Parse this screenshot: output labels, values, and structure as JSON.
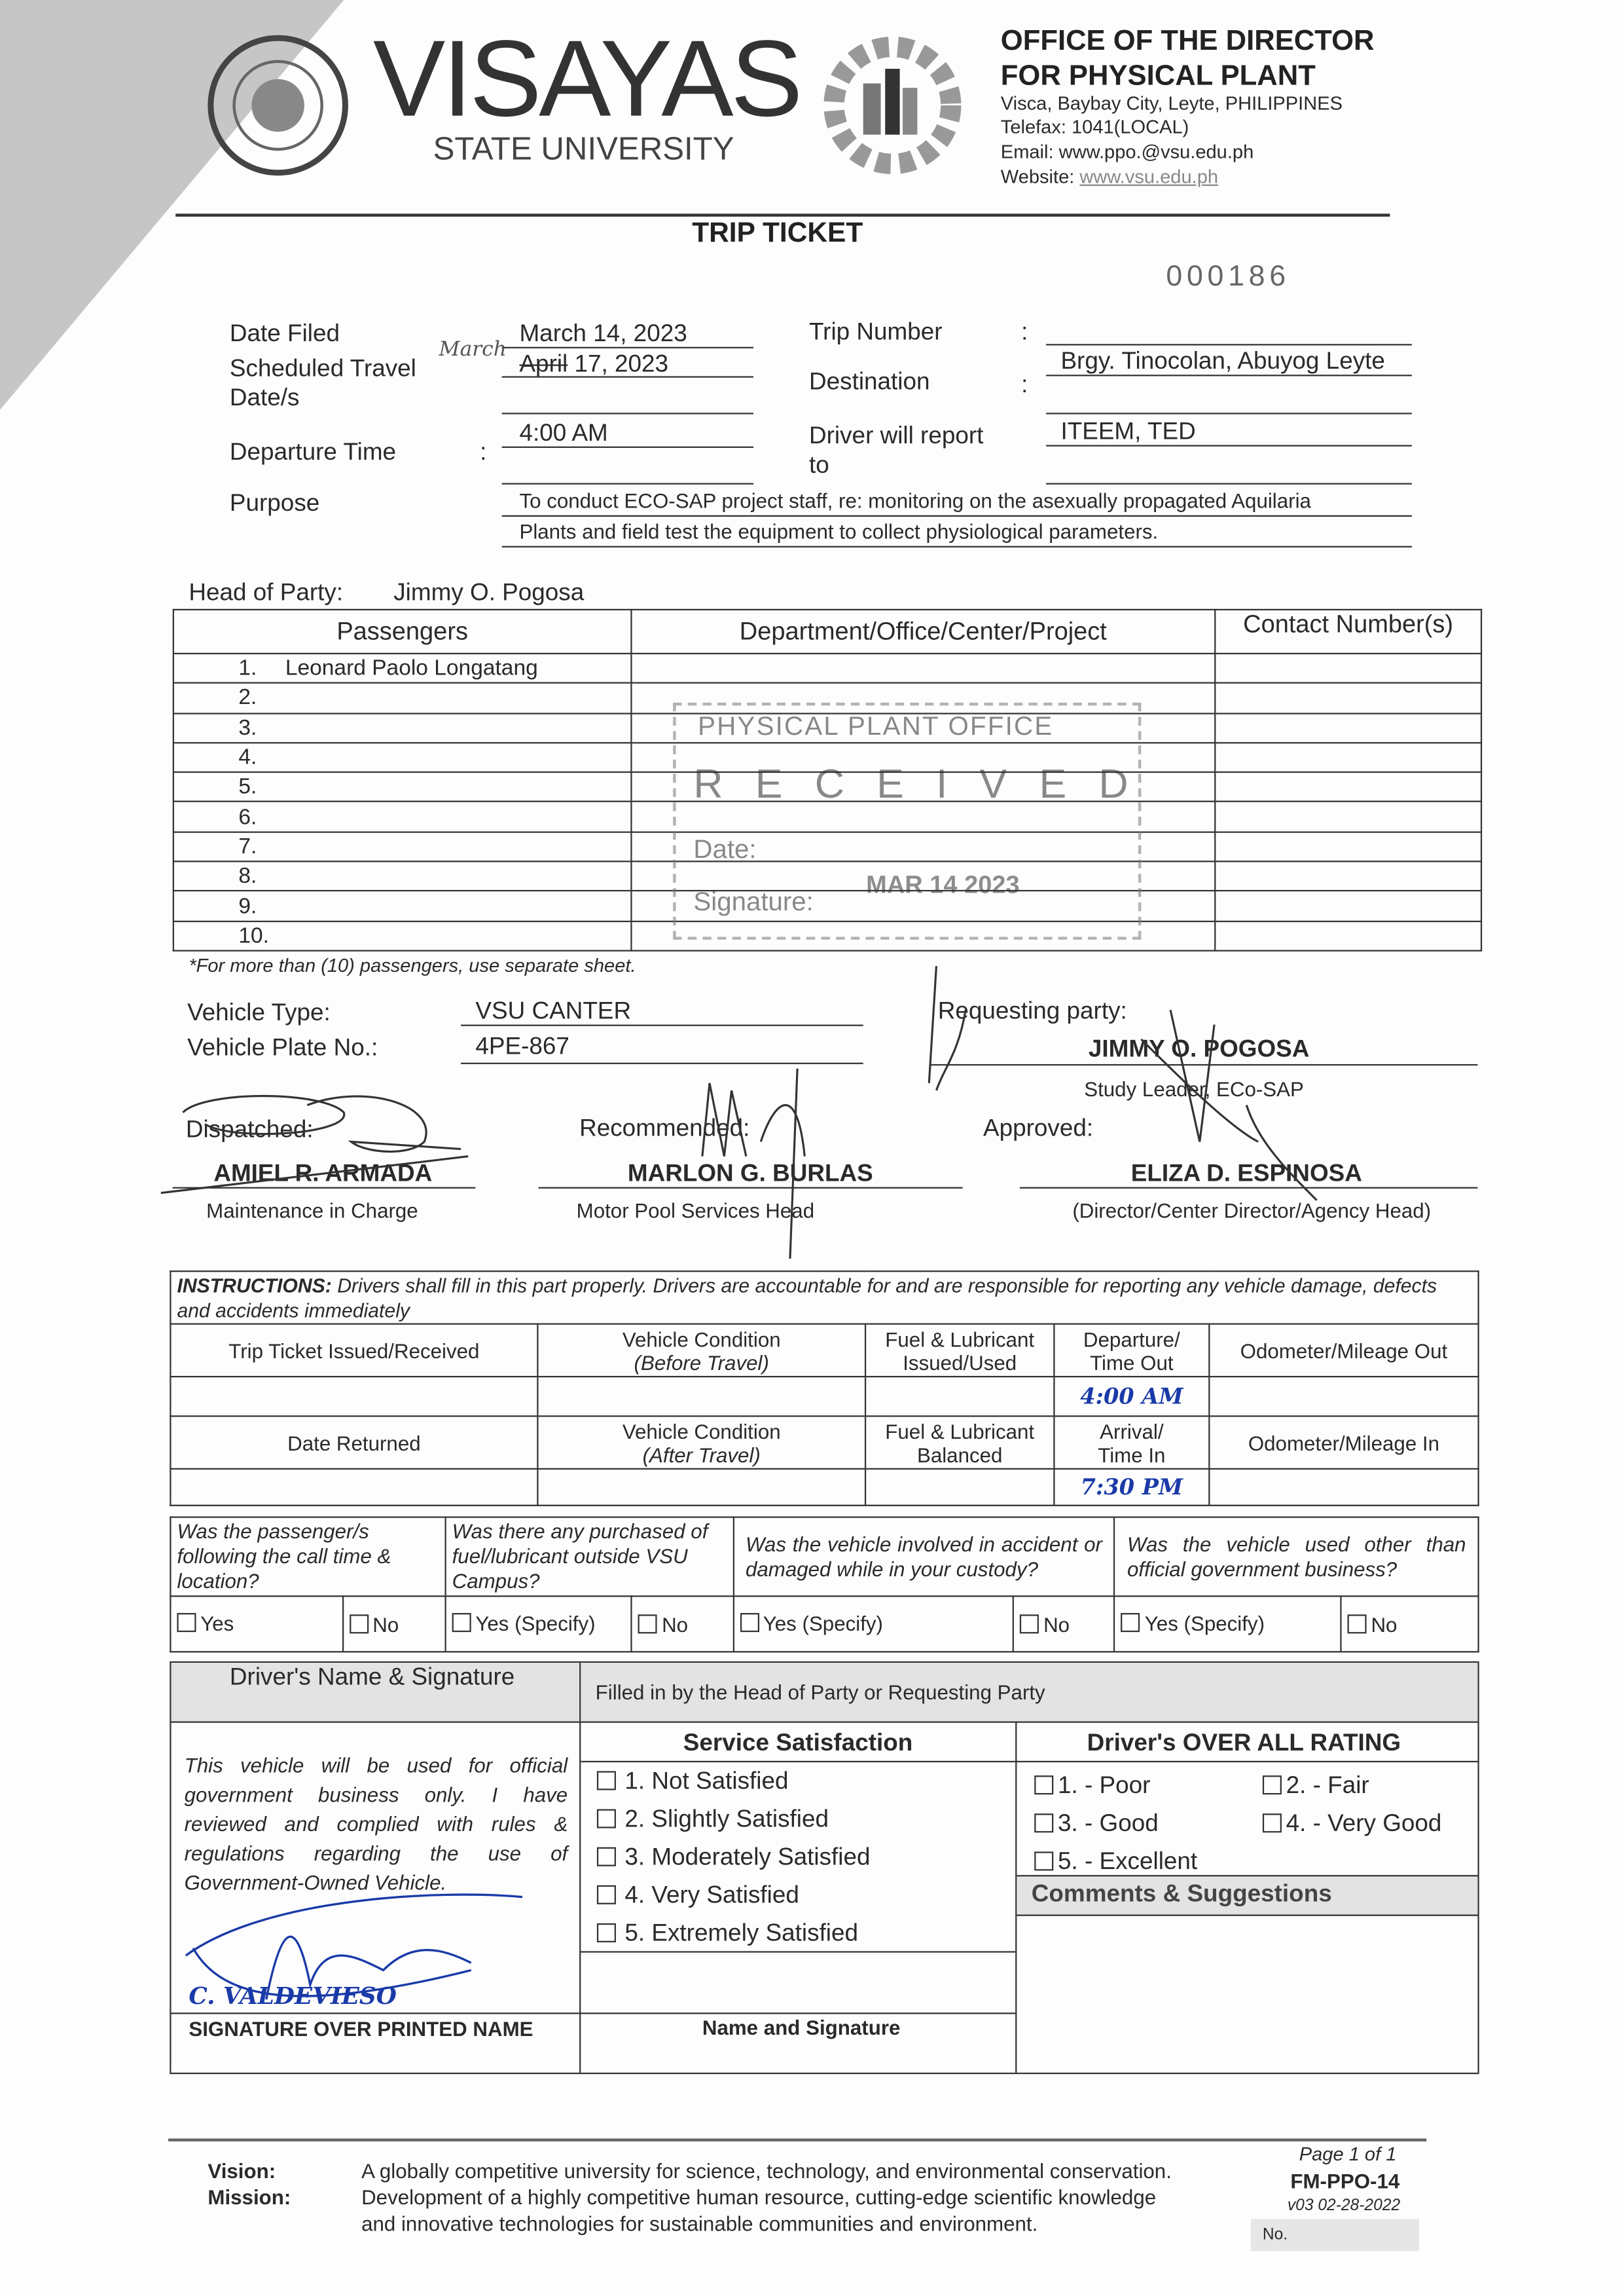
{
  "header": {
    "university_name": "VISAYAS",
    "university_sub": "STATE UNIVERSITY",
    "seal_text": "VISAYAS STATE UNIVERSITY",
    "office_logo_text": "PHYSICAL PLANT OFFICE",
    "office_line1": "OFFICE OF THE DIRECTOR",
    "office_line2": "FOR PHYSICAL PLANT",
    "address": "Visca, Baybay City, Leyte, PHILIPPINES",
    "telefax": "Telefax: 1041(LOCAL)",
    "email": "Email: www.ppo.@vsu.edu.ph",
    "website_label": "Website:",
    "website": "www.vsu.edu.ph"
  },
  "title": "TRIP TICKET",
  "serial_number": "000186",
  "fields": {
    "date_filed_label": "Date Filed",
    "date_filed": "March 14, 2023",
    "scheduled_label_1": "Scheduled Travel",
    "scheduled_label_2": "Date/s",
    "scheduled_annotation": "March",
    "scheduled_struck": "April",
    "scheduled_rest": " 17, 2023",
    "departure_label": "Departure Time",
    "departure": "4:00 AM",
    "purpose_label": "Purpose",
    "purpose_line1": "To conduct ECO-SAP project staff, re: monitoring on the asexually propagated Aquilaria",
    "purpose_line2": "Plants and field test the equipment to collect physiological parameters.",
    "trip_number_label": "Trip Number",
    "trip_number": "",
    "destination_label": "Destination",
    "destination": "Brgy. Tinocolan, Abuyog Leyte",
    "report_label_1": "Driver will report",
    "report_label_2": "to",
    "report_to": "ITEEM, TED",
    "colon": ":"
  },
  "head_of_party": {
    "label": "Head of Party:",
    "value": "Jimmy O. Pogosa"
  },
  "passengers": {
    "headers": [
      "Passengers",
      "Department/Office/Center/Project",
      "Contact Number(s)"
    ],
    "rows": [
      {
        "no": "1.",
        "name": "Leonard Paolo Longatang",
        "dept": "",
        "contact": ""
      },
      {
        "no": "2.",
        "name": "",
        "dept": "",
        "contact": ""
      },
      {
        "no": "3.",
        "name": "",
        "dept": "",
        "contact": ""
      },
      {
        "no": "4.",
        "name": "",
        "dept": "",
        "contact": ""
      },
      {
        "no": "5.",
        "name": "",
        "dept": "",
        "contact": ""
      },
      {
        "no": "6.",
        "name": "",
        "dept": "",
        "contact": ""
      },
      {
        "no": "7.",
        "name": "",
        "dept": "",
        "contact": ""
      },
      {
        "no": "8.",
        "name": "",
        "dept": "",
        "contact": ""
      },
      {
        "no": "9.",
        "name": "",
        "dept": "",
        "contact": ""
      },
      {
        "no": "10.",
        "name": "",
        "dept": "",
        "contact": ""
      }
    ],
    "note": "*For more than (10) passengers, use separate sheet."
  },
  "stamp": {
    "line1": "PHYSICAL PLANT OFFICE",
    "line2": "RECEIVED",
    "date_label": "Date:",
    "date": "MAR 14 2023",
    "signature_label": "Signature:"
  },
  "vehicle": {
    "type_label": "Vehicle Type:",
    "type": "VSU CANTER",
    "plate_label": "Vehicle Plate No.:",
    "plate": "4PE-867"
  },
  "requesting": {
    "label": "Requesting party:",
    "name": "JIMMY O. POGOSA",
    "title": "Study Leader, ECo-SAP"
  },
  "signatories": [
    {
      "label": "Dispatched:",
      "name": "AMIEL R. ARMADA",
      "title": "Maintenance in Charge"
    },
    {
      "label": "Recommended:",
      "name": "MARLON G. BURLAS",
      "title": "Motor Pool Services Head"
    },
    {
      "label": "Approved:",
      "name": "ELIZA D. ESPINOSA",
      "title": "(Director/Center Director/Agency Head)"
    }
  ],
  "instructions": {
    "bold": "INSTRUCTIONS:",
    "text": " Drivers shall fill in this part properly.  Drivers are accountable for and are responsible for reporting any vehicle damage, defects and accidents immediately",
    "row1": [
      "Trip Ticket Issued/Received",
      "Vehicle Condition",
      "(Before Travel)",
      "Fuel & Lubricant",
      "Issued/Used",
      "Departure/",
      "Time Out",
      "Odometer/Mileage Out"
    ],
    "time_out": "4:00 AM",
    "row2": [
      "Date Returned",
      "Vehicle Condition",
      "(After Travel)",
      "Fuel & Lubricant",
      "Balanced",
      "Arrival/",
      "Time In",
      "Odometer/Mileage In"
    ],
    "time_in": "7:30 PM"
  },
  "questions": [
    {
      "text": "Was the passenger/s following the call time & location?",
      "yes": "Yes",
      "no": "No"
    },
    {
      "text": "Was there any purchased of fuel/lubricant outside VSU Campus?",
      "yes": "Yes (Specify)",
      "no": "No"
    },
    {
      "text": "Was the vehicle involved in accident or damaged while in your custody?",
      "yes": "Yes (Specify)",
      "no": "No"
    },
    {
      "text": "Was the vehicle used other than official government business?",
      "yes": "Yes (Specify)",
      "no": "No"
    }
  ],
  "driver": {
    "header": "Driver's Name & Signature",
    "statement": "This vehicle will be used for official government business only.  I have reviewed and complied with rules & regulations regarding the use of Government-Owned Vehicle.",
    "printed_name": "C. VALDEVIESO",
    "footer": "SIGNATURE OVER PRINTED NAME"
  },
  "feedback": {
    "header": "Filled in by the Head of Party or Requesting Party",
    "service_title": "Service Satisfaction",
    "service_options": [
      "1.  Not Satisfied",
      "2.  Slightly Satisfied",
      "3.  Moderately Satisfied",
      "4.  Very Satisfied",
      "5.  Extremely Satisfied"
    ],
    "rating_title": "Driver's OVER ALL RATING",
    "rating_options": [
      "1. - Poor",
      "2. - Fair",
      "3. - Good",
      "4. - Very Good",
      "5. - Excellent"
    ],
    "comments_title": "Comments & Suggestions",
    "name_signature": "Name and Signature"
  },
  "footer": {
    "vision_label": "Vision:",
    "vision": "A globally competitive university for science, technology, and environmental conservation.",
    "mission_label": "Mission:",
    "mission1": "Development of a highly competitive human resource, cutting-edge scientific knowledge",
    "mission2": "and innovative technologies for sustainable communities and environment.",
    "page": "Page 1 of 1",
    "form_code": "FM-PPO-14",
    "version": "v03 02-28-2022",
    "no_label": "No."
  },
  "colors": {
    "ink": "#1a3aa8",
    "header_gray": "#e3e3e3"
  }
}
